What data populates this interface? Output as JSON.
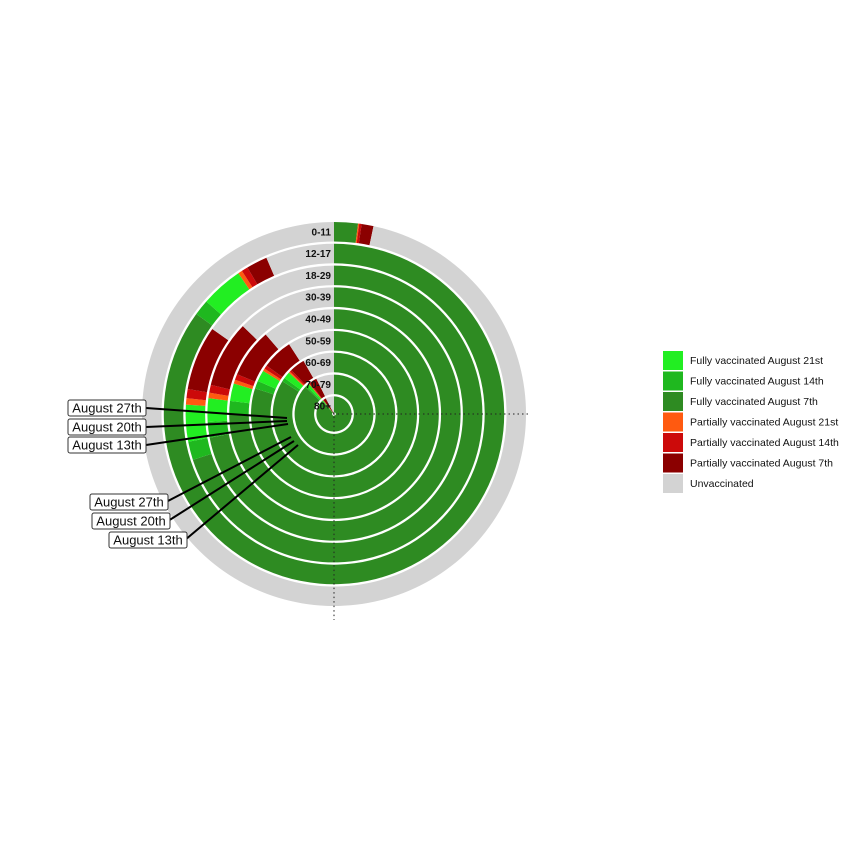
{
  "chart_data": {
    "type": "radial-stacked-bar",
    "title": "",
    "categories": [
      "0-11",
      "12-17",
      "18-29",
      "30-39",
      "40-49",
      "50-59",
      "60-69",
      "70-79",
      "80+"
    ],
    "unit": "percent of age group",
    "legend_position": "right",
    "series": [
      {
        "name": "Fully vaccinated August 7th",
        "color": "#2e8b22",
        "values": [
          2,
          85,
          70,
          72,
          75,
          80,
          84,
          87,
          88
        ]
      },
      {
        "name": "Fully vaccinated August 14th",
        "color": "#1fb81f",
        "values": [
          0,
          1.5,
          2.0,
          2.0,
          2.0,
          1.5,
          1.0,
          0.7,
          0.5
        ]
      },
      {
        "name": "Fully vaccinated August 21st",
        "color": "#22ee22",
        "values": [
          0,
          4.0,
          4.0,
          3.0,
          2.7,
          2.2,
          1.8,
          1.2,
          0.8
        ]
      },
      {
        "name": "Partially vaccinated August 7th",
        "color": "#8b0000",
        "values": [
          1.0,
          2.0,
          7.0,
          8.5,
          7.5,
          6.0,
          4.0,
          3.0,
          2.5
        ]
      },
      {
        "name": "Partially vaccinated August 14th",
        "color": "#cc0a0a",
        "values": [
          0.2,
          0.6,
          1.0,
          1.0,
          0.9,
          0.7,
          0.5,
          0.4,
          0.3
        ]
      },
      {
        "name": "Partially vaccinated August 21st",
        "color": "#ff5a10",
        "values": [
          0.1,
          0.4,
          0.7,
          0.7,
          0.6,
          0.5,
          0.4,
          0.3,
          0.2
        ]
      },
      {
        "name": "Unvaccinated",
        "color": "#d3d3d3",
        "values": [
          96.7,
          6.5,
          15.3,
          12.8,
          11.3,
          9.1,
          8.3,
          7.4,
          7.7
        ]
      }
    ],
    "callouts": [
      {
        "label": "August 27th",
        "ring": "18-29"
      },
      {
        "label": "August 20th",
        "ring": "18-29"
      },
      {
        "label": "August 13th",
        "ring": "18-29"
      },
      {
        "label": "August 27th",
        "ring": "30-39"
      },
      {
        "label": "August 20th",
        "ring": "30-39"
      },
      {
        "label": "August 13th",
        "ring": "30-39"
      }
    ]
  }
}
